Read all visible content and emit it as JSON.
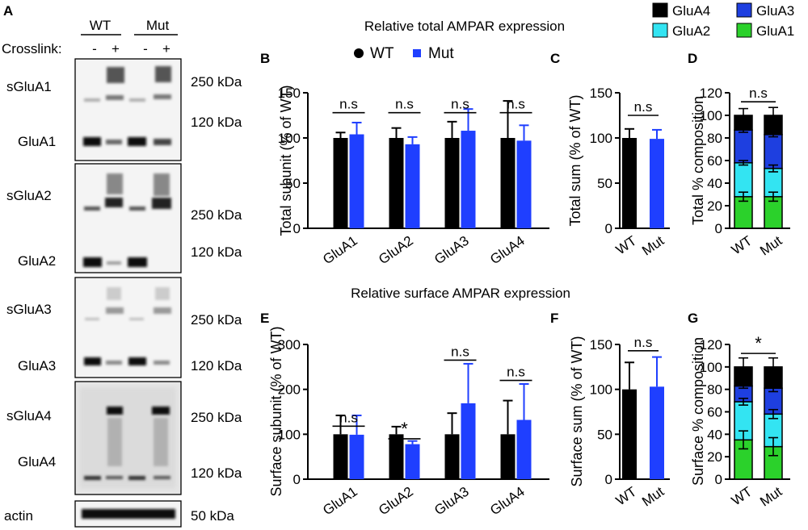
{
  "colors": {
    "wt": "#000000",
    "mut": "#1f3fff",
    "glua4": "#000000",
    "glua3": "#1e3fe0",
    "glua2": "#33e4f2",
    "glua1": "#2bd12b"
  },
  "blot": {
    "panel_letter": "A",
    "groups": [
      "WT",
      "Mut"
    ],
    "crosslink_label": "Crosslink:",
    "crosslink_marks": [
      "-",
      "+",
      "-",
      "+"
    ],
    "strips": [
      {
        "labels": [
          "sGluA1",
          "GluA1"
        ],
        "markers": [
          "250 kDa",
          "120 kDa"
        ]
      },
      {
        "labels": [
          "sGluA2",
          "GluA2"
        ],
        "markers": [
          "250 kDa",
          "120 kDa"
        ]
      },
      {
        "labels": [
          "sGluA3",
          "GluA3"
        ],
        "markers": [
          "250 kDa",
          "120 kDa"
        ]
      },
      {
        "labels": [
          "sGluA4",
          "GluA4"
        ],
        "markers": [
          "250 kDa",
          "120 kDa"
        ]
      },
      {
        "labels": [
          "actin"
        ],
        "markers": [
          "50 kDa"
        ]
      }
    ]
  },
  "headers": {
    "total": "Relative total AMPAR expression",
    "surface": "Relative surface AMPAR expression"
  },
  "legend_groups": {
    "wt": "WT",
    "mut": "Mut"
  },
  "legend_subunits": {
    "glua4": "GluA4",
    "glua3": "GluA3",
    "glua2": "GluA2",
    "glua1": "GluA1"
  },
  "chart_data": [
    {
      "panel": "B",
      "type": "bar",
      "ylabel": "Total subunit (% of WT)",
      "ylim": [
        0,
        150
      ],
      "yticks": [
        0,
        50,
        100,
        150
      ],
      "categories": [
        "GluA1",
        "GluA2",
        "GluA3",
        "GluA4"
      ],
      "series": [
        {
          "name": "WT",
          "values": [
            100,
            100,
            100,
            100
          ],
          "errors": [
            6,
            11,
            18,
            41
          ]
        },
        {
          "name": "Mut",
          "values": [
            104,
            93,
            108,
            97
          ],
          "errors": [
            13,
            8,
            24,
            17
          ]
        }
      ],
      "annotations": [
        "n.s",
        "n.s",
        "n.s",
        "n.s"
      ]
    },
    {
      "panel": "C",
      "type": "bar",
      "ylabel": "Total sum (% of WT)",
      "ylim": [
        0,
        150
      ],
      "yticks": [
        0,
        50,
        100,
        150
      ],
      "categories": [
        "WT",
        "Mut"
      ],
      "values": [
        100,
        99
      ],
      "errors": [
        10,
        10
      ],
      "annotation": "n.s"
    },
    {
      "panel": "D",
      "type": "stacked_bar",
      "ylabel": "Total % composition",
      "ylim": [
        0,
        120
      ],
      "yticks": [
        0,
        20,
        40,
        60,
        80,
        100,
        120
      ],
      "categories": [
        "WT",
        "Mut"
      ],
      "series": [
        {
          "name": "GluA1",
          "values": [
            28,
            28
          ],
          "errors": [
            4,
            4
          ]
        },
        {
          "name": "GluA2",
          "values": [
            30,
            25
          ],
          "errors": [
            2,
            3
          ]
        },
        {
          "name": "GluA3",
          "values": [
            29,
            30
          ],
          "errors": [
            2,
            2
          ]
        },
        {
          "name": "GluA4",
          "values": [
            13,
            17
          ],
          "errors": [
            6,
            7
          ]
        }
      ],
      "annotation": "n.s"
    },
    {
      "panel": "E",
      "type": "bar",
      "ylabel": "Surface subunit (% of WT)",
      "ylim": [
        0,
        300
      ],
      "yticks": [
        0,
        100,
        200,
        300
      ],
      "categories": [
        "GluA1",
        "GluA2",
        "GluA3",
        "GluA4"
      ],
      "series": [
        {
          "name": "WT",
          "values": [
            100,
            100,
            100,
            100
          ],
          "errors": [
            42,
            17,
            47,
            75
          ]
        },
        {
          "name": "Mut",
          "values": [
            99,
            78,
            169,
            132
          ],
          "errors": [
            43,
            7,
            88,
            80
          ]
        }
      ],
      "annotations": [
        "n.s",
        "*",
        "n.s",
        "n.s"
      ]
    },
    {
      "panel": "F",
      "type": "bar",
      "ylabel": "Surface sum (% of WT)",
      "ylim": [
        0,
        150
      ],
      "yticks": [
        0,
        50,
        100,
        150
      ],
      "categories": [
        "WT",
        "Mut"
      ],
      "values": [
        100,
        103
      ],
      "errors": [
        30,
        33
      ],
      "annotation": "n.s"
    },
    {
      "panel": "G",
      "type": "stacked_bar",
      "ylabel": "Surface % composition",
      "ylim": [
        0,
        120
      ],
      "yticks": [
        0,
        20,
        40,
        60,
        80,
        100,
        120
      ],
      "categories": [
        "WT",
        "Mut"
      ],
      "series": [
        {
          "name": "GluA1",
          "values": [
            35,
            29
          ],
          "errors": [
            8,
            8
          ]
        },
        {
          "name": "GluA2",
          "values": [
            34,
            29
          ],
          "errors": [
            3,
            4
          ]
        },
        {
          "name": "GluA3",
          "values": [
            14,
            23
          ],
          "errors": [
            2,
            3
          ]
        },
        {
          "name": "GluA4",
          "values": [
            17,
            19
          ],
          "errors": [
            8,
            8
          ]
        }
      ],
      "annotation": "*"
    }
  ]
}
